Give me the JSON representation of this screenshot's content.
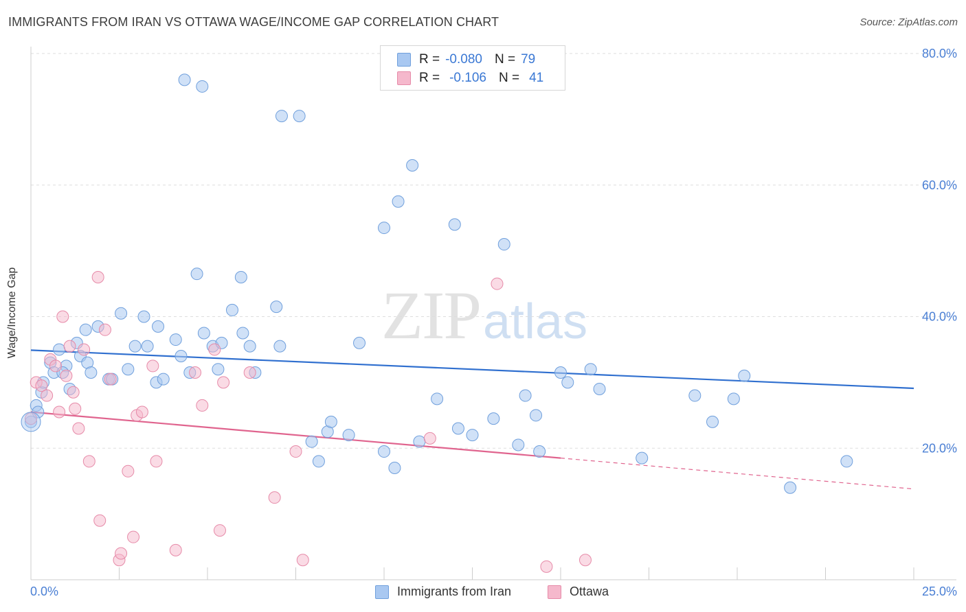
{
  "title": "IMMIGRANTS FROM IRAN VS OTTAWA WAGE/INCOME GAP CORRELATION CHART",
  "source": "Source: ZipAtlas.com",
  "watermark": {
    "zip": "ZIP",
    "atlas": "atlas"
  },
  "legend": {
    "rows": [
      {
        "r_label": "R =",
        "r_value": "-0.080",
        "n_label": "N =",
        "n_value": "79",
        "color": "#a9c8f1"
      },
      {
        "r_label": "R =",
        "r_value": "-0.106",
        "n_label": "N =",
        "n_value": "41",
        "color": "#f5b8cc"
      }
    ]
  },
  "bottom_legend": [
    {
      "label": "Immigrants from Iran",
      "color": "#a9c8f1"
    },
    {
      "label": "Ottawa",
      "color": "#f5b8cc"
    }
  ],
  "colors": {
    "blue_fill": "#a9c8f1",
    "blue_stroke": "#6f9fdc",
    "blue_line": "#2f6fcf",
    "pink_fill": "#f5b8cc",
    "pink_stroke": "#e68aa8",
    "pink_line": "#e0648e",
    "axis_text": "#4a7fd4",
    "grid": "#dddddd"
  },
  "chart_data": {
    "type": "scatter",
    "title": "IMMIGRANTS FROM IRAN VS OTTAWA WAGE/INCOME GAP CORRELATION CHART",
    "xlabel": "",
    "ylabel": "Wage/Income Gap",
    "xlim": [
      0,
      25
    ],
    "ylim": [
      0,
      80
    ],
    "x_tick_labels": [
      "0.0%",
      "25.0%"
    ],
    "y_ticks": [
      20,
      40,
      60,
      80
    ],
    "y_tick_labels": [
      "20.0%",
      "40.0%",
      "60.0%",
      "80.0%"
    ],
    "grid": true,
    "series": [
      {
        "name": "Immigrants from Iran",
        "r": -0.08,
        "n": 79,
        "trend": {
          "x0": 0,
          "y0": 34.9,
          "x1": 25,
          "y1": 29.1
        },
        "points": [
          [
            0.0,
            24.0
          ],
          [
            0.15,
            26.5
          ],
          [
            0.2,
            25.5
          ],
          [
            0.3,
            28.5
          ],
          [
            0.35,
            30.0
          ],
          [
            0.55,
            33.0
          ],
          [
            0.65,
            31.5
          ],
          [
            0.8,
            35.0
          ],
          [
            1.0,
            32.5
          ],
          [
            0.9,
            31.5
          ],
          [
            1.1,
            29.0
          ],
          [
            1.3,
            36.0
          ],
          [
            1.4,
            34.0
          ],
          [
            1.6,
            33.0
          ],
          [
            1.7,
            31.5
          ],
          [
            1.55,
            38.0
          ],
          [
            1.9,
            38.5
          ],
          [
            2.2,
            30.5
          ],
          [
            2.3,
            30.5
          ],
          [
            2.55,
            40.5
          ],
          [
            2.75,
            32.0
          ],
          [
            2.95,
            35.5
          ],
          [
            3.2,
            40.0
          ],
          [
            3.3,
            35.5
          ],
          [
            3.55,
            30.0
          ],
          [
            3.6,
            38.5
          ],
          [
            3.75,
            30.5
          ],
          [
            4.1,
            36.5
          ],
          [
            4.25,
            34.0
          ],
          [
            4.5,
            31.5
          ],
          [
            4.7,
            46.5
          ],
          [
            4.9,
            37.5
          ],
          [
            5.15,
            35.5
          ],
          [
            5.4,
            36.0
          ],
          [
            5.3,
            32.0
          ],
          [
            5.7,
            41.0
          ],
          [
            5.95,
            46.0
          ],
          [
            6.0,
            37.5
          ],
          [
            6.2,
            35.5
          ],
          [
            6.35,
            31.5
          ],
          [
            6.95,
            41.5
          ],
          [
            7.05,
            35.5
          ],
          [
            7.95,
            21.0
          ],
          [
            8.15,
            18.0
          ],
          [
            8.4,
            22.5
          ],
          [
            8.5,
            24.0
          ],
          [
            9.0,
            22.0
          ],
          [
            9.3,
            36.0
          ],
          [
            10.0,
            19.5
          ],
          [
            10.3,
            17.0
          ],
          [
            11.0,
            21.0
          ],
          [
            11.5,
            27.5
          ],
          [
            12.1,
            23.0
          ],
          [
            12.5,
            22.0
          ],
          [
            13.1,
            24.5
          ],
          [
            13.8,
            20.5
          ],
          [
            14.0,
            28.0
          ],
          [
            14.3,
            25.0
          ],
          [
            14.4,
            19.5
          ],
          [
            15.0,
            31.5
          ],
          [
            15.2,
            30.0
          ],
          [
            15.85,
            32.0
          ],
          [
            16.1,
            29.0
          ],
          [
            17.3,
            18.5
          ],
          [
            18.8,
            28.0
          ],
          [
            19.3,
            24.0
          ],
          [
            19.9,
            27.5
          ],
          [
            20.2,
            31.0
          ],
          [
            21.5,
            14.0
          ],
          [
            23.1,
            18.0
          ],
          [
            4.35,
            76.0
          ],
          [
            4.85,
            75.0
          ],
          [
            7.1,
            70.5
          ],
          [
            7.6,
            70.5
          ],
          [
            10.8,
            63.0
          ],
          [
            10.4,
            57.5
          ],
          [
            10.0,
            53.5
          ],
          [
            12.0,
            54.0
          ],
          [
            13.4,
            51.0
          ]
        ]
      },
      {
        "name": "Ottawa",
        "r": -0.106,
        "n": 41,
        "trend": {
          "x0": 0,
          "y0": 25.5,
          "x1": 15,
          "y1": 18.5,
          "dash_to_x": 25,
          "dash_to_y": 13.8
        },
        "points": [
          [
            0.0,
            24.5
          ],
          [
            0.15,
            30.0
          ],
          [
            0.3,
            29.5
          ],
          [
            0.45,
            28.0
          ],
          [
            0.55,
            33.5
          ],
          [
            0.7,
            32.5
          ],
          [
            0.8,
            25.5
          ],
          [
            0.9,
            40.0
          ],
          [
            1.0,
            31.0
          ],
          [
            1.1,
            35.5
          ],
          [
            1.2,
            28.5
          ],
          [
            1.25,
            26.0
          ],
          [
            1.35,
            23.0
          ],
          [
            1.5,
            35.0
          ],
          [
            1.65,
            18.0
          ],
          [
            1.9,
            46.0
          ],
          [
            1.95,
            9.0
          ],
          [
            2.1,
            38.0
          ],
          [
            2.25,
            30.5
          ],
          [
            2.5,
            3.0
          ],
          [
            2.55,
            4.0
          ],
          [
            2.75,
            16.5
          ],
          [
            2.9,
            6.5
          ],
          [
            3.0,
            25.0
          ],
          [
            3.15,
            25.5
          ],
          [
            3.45,
            32.5
          ],
          [
            3.55,
            18.0
          ],
          [
            4.1,
            4.5
          ],
          [
            4.65,
            31.5
          ],
          [
            4.85,
            26.5
          ],
          [
            5.2,
            35.0
          ],
          [
            5.35,
            7.5
          ],
          [
            5.45,
            30.0
          ],
          [
            6.2,
            31.5
          ],
          [
            6.9,
            12.5
          ],
          [
            7.5,
            19.5
          ],
          [
            7.7,
            3.0
          ],
          [
            11.3,
            21.5
          ],
          [
            13.2,
            45.0
          ],
          [
            14.6,
            2.0
          ],
          [
            15.7,
            3.0
          ]
        ]
      }
    ],
    "legend_placement": "top-center"
  }
}
